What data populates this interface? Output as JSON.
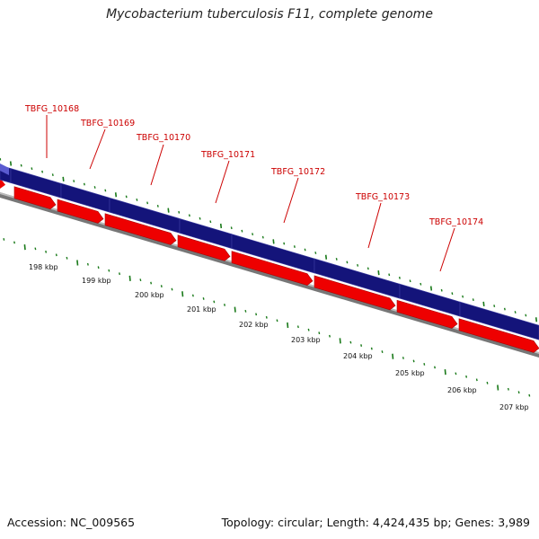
{
  "header": {
    "title": "Mycobacterium tuberculosis F11, complete genome"
  },
  "footer": {
    "accession": "Accession: NC_009565",
    "summary": "Topology: circular; Length: 4,424,435 bp; Genes: 3,989"
  },
  "gene_labels": [
    "TBFG_10168",
    "TBFG_10169",
    "TBFG_10170",
    "TBFG_10171",
    "TBFG_10172",
    "TBFG_10173",
    "TBFG_10174"
  ],
  "scale_labels": [
    "198 kbp",
    "199 kbp",
    "200 kbp",
    "201 kbp",
    "202 kbp",
    "203 kbp",
    "204 kbp",
    "205 kbp",
    "206 kbp",
    "207 kbp"
  ],
  "colors": {
    "forward_gene": "#14147a",
    "reverse_gene": "#ee0000",
    "backbone": "#888888",
    "ticks": "#1a7a1a",
    "labels": "#cc0000"
  }
}
